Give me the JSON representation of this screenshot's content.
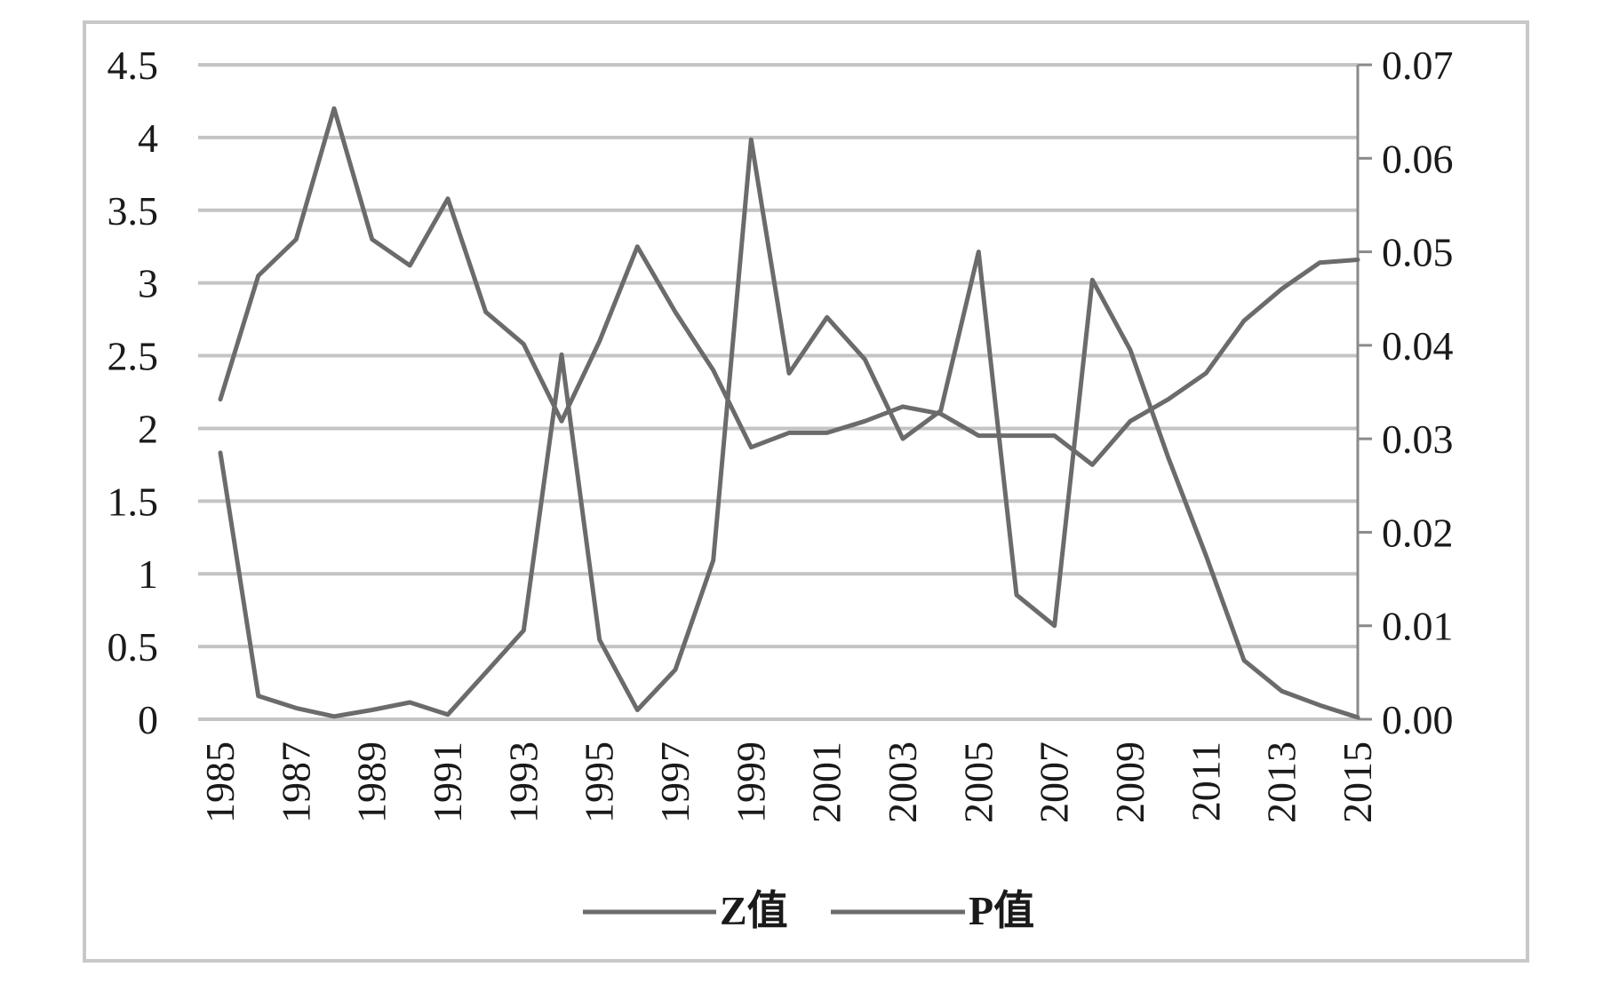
{
  "chart_data": {
    "type": "line",
    "x": [
      1985,
      1986,
      1987,
      1988,
      1989,
      1990,
      1991,
      1992,
      1993,
      1994,
      1995,
      1996,
      1997,
      1998,
      1999,
      2000,
      2001,
      2002,
      2003,
      2004,
      2005,
      2006,
      2007,
      2008,
      2009,
      2010,
      2011,
      2012,
      2013,
      2014,
      2015
    ],
    "x_tick_labels": [
      "1985",
      "1987",
      "1989",
      "1991",
      "1993",
      "1995",
      "1997",
      "1999",
      "2001",
      "2003",
      "2005",
      "2007",
      "2009",
      "2011",
      "2013",
      "2015"
    ],
    "y_left": {
      "lim": [
        0,
        4.5
      ],
      "ticks": [
        "0",
        "0.5",
        "1",
        "1.5",
        "2",
        "2.5",
        "3",
        "3.5",
        "4",
        "4.5"
      ]
    },
    "y_right": {
      "lim": [
        0,
        0.07
      ],
      "ticks": [
        "0.00",
        "0.01",
        "0.02",
        "0.03",
        "0.04",
        "0.05",
        "0.06",
        "0.07"
      ]
    },
    "grid": true,
    "legend_position": "bottom",
    "series": [
      {
        "name": "Z值",
        "axis": "left",
        "color": "#6b6b6b",
        "values": [
          2.2,
          3.05,
          3.3,
          4.2,
          3.3,
          3.12,
          3.58,
          2.8,
          2.58,
          2.05,
          2.6,
          3.25,
          2.8,
          2.4,
          1.87,
          1.97,
          1.97,
          2.05,
          2.15,
          2.1,
          1.95,
          1.95,
          1.95,
          1.75,
          2.05,
          2.2,
          2.38,
          2.74,
          2.96,
          3.14,
          3.16
        ]
      },
      {
        "name": "P值",
        "axis": "right",
        "color": "#6b6b6b",
        "values": [
          0.0285,
          0.0025,
          0.0012,
          0.0003,
          0.001,
          0.0018,
          0.0005,
          0.005,
          0.0095,
          0.039,
          0.0085,
          0.001,
          0.0053,
          0.017,
          0.062,
          0.037,
          0.043,
          0.0385,
          0.03,
          0.033,
          0.05,
          0.0133,
          0.01,
          0.047,
          0.0395,
          0.028,
          0.0175,
          0.0063,
          0.003,
          0.0015,
          0.0002
        ]
      }
    ]
  }
}
